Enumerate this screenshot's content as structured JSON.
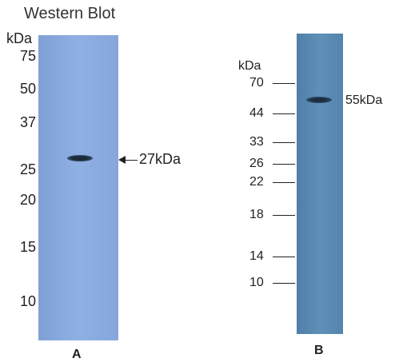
{
  "title": "Western Blot",
  "panel_a": {
    "unit": "kDa",
    "markers": [
      "75",
      "50",
      "37",
      "25",
      "20",
      "15",
      "10"
    ],
    "band_label": "27kDa",
    "label": "A"
  },
  "panel_b": {
    "unit": "kDa",
    "markers": [
      "70",
      "44",
      "33",
      "26",
      "22",
      "18",
      "14",
      "10"
    ],
    "band_label": "55kDa",
    "label": "B"
  },
  "colors": {
    "lane_a": "#86a6dc",
    "lane_b": "#5384ad",
    "band": "#1b2a3a"
  }
}
